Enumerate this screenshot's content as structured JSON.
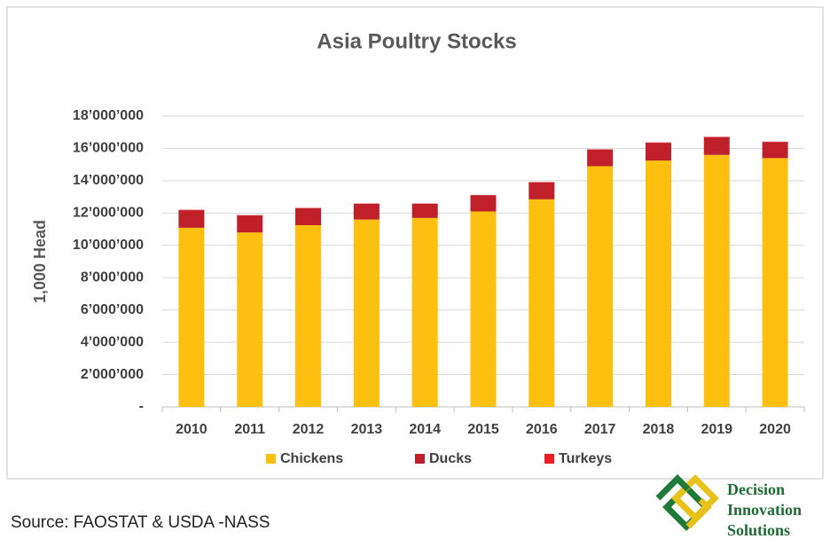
{
  "chart_data": {
    "type": "bar",
    "stacked": true,
    "title": "Asia Poultry Stocks",
    "y_label": "1,000 Head",
    "categories": [
      "2010",
      "2011",
      "2012",
      "2013",
      "2014",
      "2015",
      "2016",
      "2017",
      "2018",
      "2019",
      "2020"
    ],
    "series": [
      {
        "name": "Chickens",
        "color": "#fdc010",
        "values": [
          11090000,
          10800000,
          11250000,
          11600000,
          11700000,
          12100000,
          12850000,
          14900000,
          15250000,
          15600000,
          15400000
        ]
      },
      {
        "name": "Ducks",
        "color": "#c0202a",
        "values": [
          1090000,
          1050000,
          1050000,
          970000,
          870000,
          1000000,
          1050000,
          1030000,
          1100000,
          1100000,
          1000000
        ]
      },
      {
        "name": "Turkeys",
        "color": "#ee1c25",
        "values": [
          20000,
          20000,
          20000,
          20000,
          20000,
          20000,
          20000,
          20000,
          20000,
          20000,
          20000
        ]
      }
    ],
    "ylim": [
      0,
      18000000
    ],
    "yticks": [
      {
        "value": 0,
        "label": "-"
      },
      {
        "value": 2000000,
        "label": "2’000’000"
      },
      {
        "value": 4000000,
        "label": "4’000’000"
      },
      {
        "value": 6000000,
        "label": "6’000’000"
      },
      {
        "value": 8000000,
        "label": "8’000’000"
      },
      {
        "value": 10000000,
        "label": "10’000’000"
      },
      {
        "value": 12000000,
        "label": "12’000’000"
      },
      {
        "value": 14000000,
        "label": "14’000’000"
      },
      {
        "value": 16000000,
        "label": "16’000’000"
      },
      {
        "value": 18000000,
        "label": "18’000’000"
      }
    ],
    "grid": true,
    "legend": "bottom"
  },
  "source": "Source: FAOSTAT & USDA -NASS",
  "logo": [
    "Decision",
    "Innovation",
    "Solutions"
  ]
}
